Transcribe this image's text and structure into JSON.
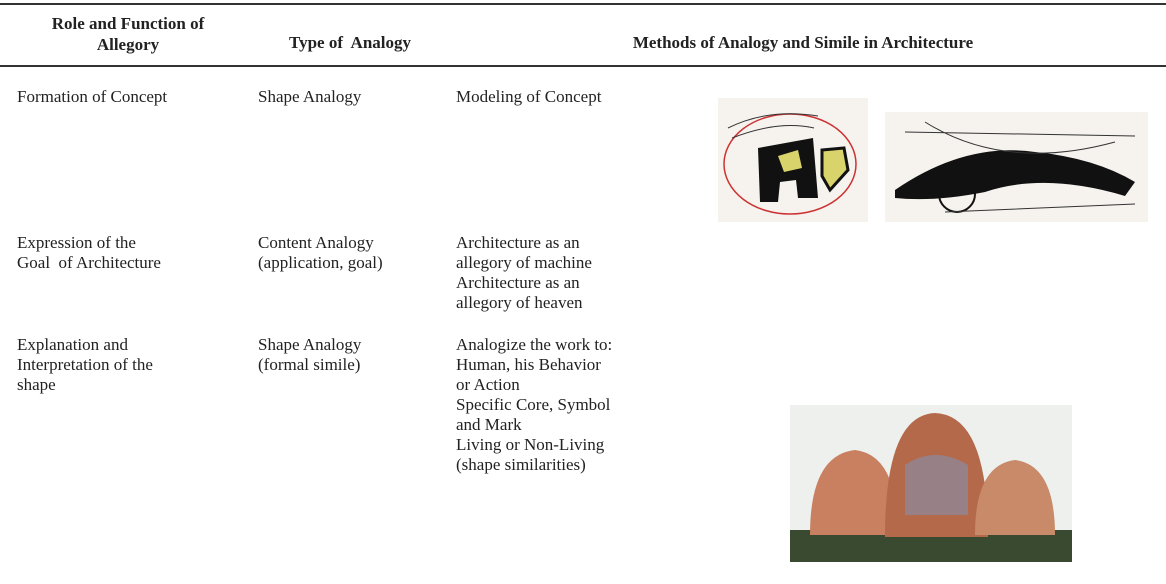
{
  "table": {
    "header": [
      [
        "Role and Function of",
        "Allegory"
      ],
      [
        "Type of  Analogy"
      ],
      [
        "Methods of Analogy and Simile in Architecture"
      ]
    ],
    "rows": [
      [
        [
          "Formation of Concept"
        ],
        [
          "Shape Analogy"
        ],
        [
          "Modeling of Concept"
        ]
      ],
      [
        [
          "Expression of the",
          "Goal  of Architecture"
        ],
        [
          "Content Analogy",
          "(application, goal)"
        ],
        [
          "Architecture as an",
          "allegory of machine",
          "Architecture as an",
          "allegory of heaven"
        ]
      ],
      [
        [
          "Explanation and",
          "Interpretation of the",
          "shape"
        ],
        [
          "Shape Analogy",
          "(formal simile)"
        ],
        [
          "Analogize the work to:",
          "Human, his Behavior",
          "or Action",
          "Specific Core, Symbol",
          "and Mark",
          "Living or Non-Living",
          "(shape similarities)"
        ]
      ]
    ]
  }
}
